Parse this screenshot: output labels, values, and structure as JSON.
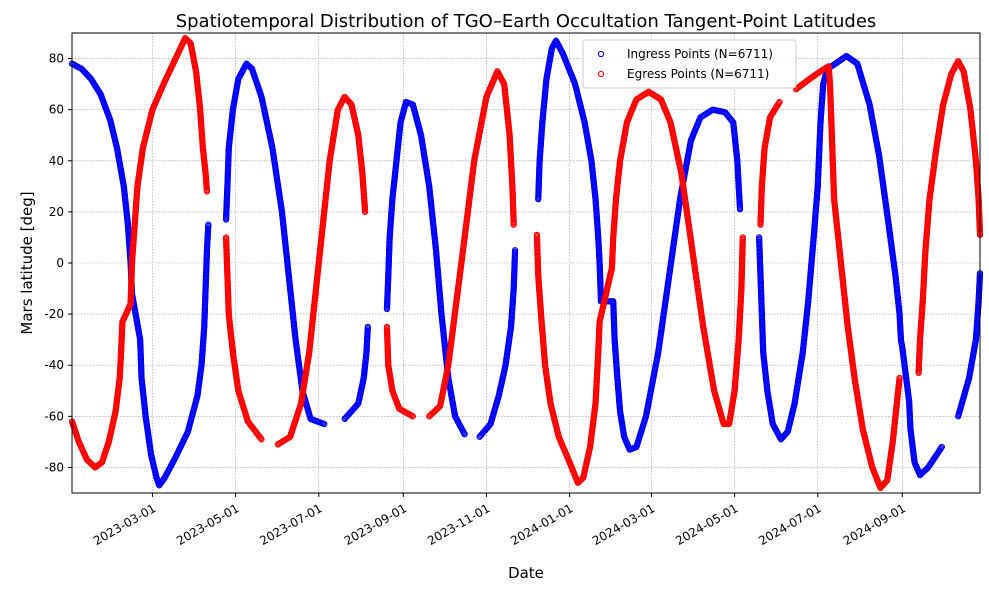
{
  "chart_data": {
    "type": "scatter",
    "title": "Spatiotemporal Distribution of TGO–Earth Occultation Tangent-Point Latitudes",
    "xlabel": "Date",
    "ylabel": "Mars latitude [deg]",
    "xlim": [
      "2023-01-01",
      "2024-10-28"
    ],
    "ylim": [
      -90,
      90
    ],
    "x_ticks": [
      "2023-03-01",
      "2023-05-01",
      "2023-07-01",
      "2023-09-01",
      "2023-11-01",
      "2024-01-01",
      "2024-03-01",
      "2024-05-01",
      "2024-07-01",
      "2024-09-01"
    ],
    "y_ticks": [
      -80,
      -60,
      -40,
      -20,
      0,
      20,
      40,
      60,
      80
    ],
    "grid": true,
    "legend_position": "top-right",
    "marker": "open-circle",
    "series": [
      {
        "name": "Ingress Points (N=6711)",
        "color": "#0000ff",
        "points": [
          [
            "2023-01-01",
            78
          ],
          [
            "2023-01-08",
            76
          ],
          [
            "2023-01-15",
            72
          ],
          [
            "2023-01-22",
            66
          ],
          [
            "2023-01-29",
            56
          ],
          [
            "2023-02-03",
            45
          ],
          [
            "2023-02-08",
            30
          ],
          [
            "2023-02-11",
            15
          ],
          [
            "2023-02-13",
            0
          ],
          [
            "2023-02-14",
            -12
          ],
          [
            "2023-02-20",
            -30
          ],
          [
            "2023-02-21",
            -45
          ],
          [
            "2023-02-24",
            -60
          ],
          [
            "2023-02-28",
            -75
          ],
          [
            "2023-03-04",
            -84
          ],
          [
            "2023-03-06",
            -87
          ],
          [
            "2023-03-10",
            -84
          ],
          [
            "2023-03-18",
            -76
          ],
          [
            "2023-03-27",
            -66
          ],
          [
            "2023-04-03",
            -52
          ],
          [
            "2023-04-06",
            -40
          ],
          [
            "2023-04-08",
            -25
          ],
          [
            "2023-04-09",
            -10
          ],
          [
            "2023-04-10",
            5
          ],
          [
            "2023-04-11",
            15
          ],
          [
            "2023-04-24",
            17
          ],
          [
            "2023-04-25",
            30
          ],
          [
            "2023-04-26",
            45
          ],
          [
            "2023-04-29",
            60
          ],
          [
            "2023-05-03",
            72
          ],
          [
            "2023-05-09",
            78
          ],
          [
            "2023-05-13",
            76
          ],
          [
            "2023-05-20",
            65
          ],
          [
            "2023-05-28",
            45
          ],
          [
            "2023-06-04",
            20
          ],
          [
            "2023-06-09",
            -5
          ],
          [
            "2023-06-14",
            -30
          ],
          [
            "2023-06-19",
            -50
          ],
          [
            "2023-06-25",
            -61
          ],
          [
            "2023-07-05",
            -63
          ],
          [
            "2023-07-20",
            -61
          ],
          [
            "2023-07-30",
            -55
          ],
          [
            "2023-08-03",
            -45
          ],
          [
            "2023-08-05",
            -35
          ],
          [
            "2023-08-06",
            -25
          ],
          [
            "2023-08-20",
            -18
          ],
          [
            "2023-08-21",
            -5
          ],
          [
            "2023-08-22",
            10
          ],
          [
            "2023-08-24",
            25
          ],
          [
            "2023-08-27",
            40
          ],
          [
            "2023-08-30",
            55
          ],
          [
            "2023-09-03",
            63
          ],
          [
            "2023-09-08",
            62
          ],
          [
            "2023-09-14",
            50
          ],
          [
            "2023-09-20",
            30
          ],
          [
            "2023-09-25",
            5
          ],
          [
            "2023-09-29",
            -20
          ],
          [
            "2023-10-04",
            -45
          ],
          [
            "2023-10-09",
            -60
          ],
          [
            "2023-10-16",
            -67
          ],
          [
            "2023-10-27",
            -68
          ],
          [
            "2023-11-04",
            -63
          ],
          [
            "2023-11-10",
            -52
          ],
          [
            "2023-11-15",
            -40
          ],
          [
            "2023-11-19",
            -25
          ],
          [
            "2023-11-21",
            -10
          ],
          [
            "2023-11-22",
            5
          ],
          [
            "2023-12-09",
            25
          ],
          [
            "2023-12-10",
            40
          ],
          [
            "2023-12-12",
            55
          ],
          [
            "2023-12-15",
            72
          ],
          [
            "2023-12-19",
            84
          ],
          [
            "2023-12-22",
            87
          ],
          [
            "2023-12-27",
            82
          ],
          [
            "2024-01-05",
            70
          ],
          [
            "2024-01-12",
            55
          ],
          [
            "2024-01-17",
            40
          ],
          [
            "2024-01-20",
            25
          ],
          [
            "2024-01-22",
            10
          ],
          [
            "2024-01-23",
            0
          ],
          [
            "2024-01-24",
            -15
          ],
          [
            "2024-02-02",
            -15
          ],
          [
            "2024-02-03",
            -30
          ],
          [
            "2024-02-05",
            -45
          ],
          [
            "2024-02-07",
            -58
          ],
          [
            "2024-02-10",
            -68
          ],
          [
            "2024-02-14",
            -73
          ],
          [
            "2024-02-19",
            -72
          ],
          [
            "2024-02-26",
            -60
          ],
          [
            "2024-03-06",
            -35
          ],
          [
            "2024-03-14",
            -5
          ],
          [
            "2024-03-22",
            25
          ],
          [
            "2024-03-30",
            48
          ],
          [
            "2024-04-06",
            57
          ],
          [
            "2024-04-15",
            60
          ],
          [
            "2024-04-24",
            59
          ],
          [
            "2024-04-30",
            55
          ],
          [
            "2024-05-03",
            40
          ],
          [
            "2024-05-04",
            30
          ],
          [
            "2024-05-05",
            21
          ],
          [
            "2024-05-19",
            10
          ],
          [
            "2024-05-20",
            -5
          ],
          [
            "2024-05-21",
            -20
          ],
          [
            "2024-05-22",
            -35
          ],
          [
            "2024-05-25",
            -50
          ],
          [
            "2024-05-29",
            -63
          ],
          [
            "2024-06-04",
            -69
          ],
          [
            "2024-06-09",
            -66
          ],
          [
            "2024-06-14",
            -55
          ],
          [
            "2024-06-20",
            -35
          ],
          [
            "2024-06-24",
            -15
          ],
          [
            "2024-06-28",
            10
          ],
          [
            "2024-07-01",
            30
          ],
          [
            "2024-07-03",
            55
          ],
          [
            "2024-07-05",
            70
          ],
          [
            "2024-07-08",
            76
          ],
          [
            "2024-07-14",
            78
          ],
          [
            "2024-07-22",
            81
          ],
          [
            "2024-07-30",
            78
          ],
          [
            "2024-08-08",
            62
          ],
          [
            "2024-08-15",
            42
          ],
          [
            "2024-08-22",
            15
          ],
          [
            "2024-08-27",
            -5
          ],
          [
            "2024-08-30",
            -20
          ],
          [
            "2024-08-31",
            -30
          ],
          [
            "2024-09-01",
            -33
          ],
          [
            "2024-09-06",
            -54
          ],
          [
            "2024-09-07",
            -65
          ],
          [
            "2024-09-10",
            -78
          ],
          [
            "2024-09-14",
            -83
          ],
          [
            "2024-09-20",
            -80
          ],
          [
            "2024-09-30",
            -72
          ],
          [
            "2024-10-12",
            -60
          ],
          [
            "2024-10-20",
            -45
          ],
          [
            "2024-10-25",
            -30
          ],
          [
            "2024-10-27",
            -15
          ],
          [
            "2024-10-28",
            -4
          ]
        ]
      },
      {
        "name": "Egress Points (N=6711)",
        "color": "#ff0000",
        "points": [
          [
            "2023-01-01",
            -62
          ],
          [
            "2023-01-06",
            -70
          ],
          [
            "2023-01-12",
            -77
          ],
          [
            "2023-01-18",
            -80
          ],
          [
            "2023-01-23",
            -78
          ],
          [
            "2023-01-28",
            -70
          ],
          [
            "2023-02-02",
            -58
          ],
          [
            "2023-02-05",
            -45
          ],
          [
            "2023-02-06",
            -35
          ],
          [
            "2023-02-07",
            -23
          ],
          [
            "2023-02-13",
            -16
          ],
          [
            "2023-02-14",
            0
          ],
          [
            "2023-02-16",
            15
          ],
          [
            "2023-02-18",
            30
          ],
          [
            "2023-02-22",
            45
          ],
          [
            "2023-03-01",
            60
          ],
          [
            "2023-03-10",
            71
          ],
          [
            "2023-03-18",
            80
          ],
          [
            "2023-03-25",
            88
          ],
          [
            "2023-03-29",
            86
          ],
          [
            "2023-04-02",
            75
          ],
          [
            "2023-04-05",
            60
          ],
          [
            "2023-04-07",
            45
          ],
          [
            "2023-04-09",
            35
          ],
          [
            "2023-04-10",
            28
          ],
          [
            "2023-04-24",
            10
          ],
          [
            "2023-04-25",
            -5
          ],
          [
            "2023-04-26",
            -20
          ],
          [
            "2023-04-29",
            -35
          ],
          [
            "2023-05-03",
            -50
          ],
          [
            "2023-05-10",
            -62
          ],
          [
            "2023-05-20",
            -69
          ],
          [
            "2023-06-01",
            -71
          ],
          [
            "2023-06-10",
            -68
          ],
          [
            "2023-06-18",
            -55
          ],
          [
            "2023-06-24",
            -35
          ],
          [
            "2023-06-29",
            -10
          ],
          [
            "2023-07-04",
            15
          ],
          [
            "2023-07-09",
            40
          ],
          [
            "2023-07-15",
            60
          ],
          [
            "2023-07-20",
            65
          ],
          [
            "2023-07-25",
            62
          ],
          [
            "2023-07-30",
            50
          ],
          [
            "2023-08-02",
            35
          ],
          [
            "2023-08-04",
            20
          ],
          [
            "2023-08-20",
            -25
          ],
          [
            "2023-08-21",
            -40
          ],
          [
            "2023-08-24",
            -50
          ],
          [
            "2023-08-29",
            -57
          ],
          [
            "2023-09-08",
            -60
          ],
          [
            "2023-09-20",
            -60
          ],
          [
            "2023-09-28",
            -56
          ],
          [
            "2023-10-04",
            -40
          ],
          [
            "2023-10-10",
            -15
          ],
          [
            "2023-10-16",
            10
          ],
          [
            "2023-10-23",
            40
          ],
          [
            "2023-11-01",
            65
          ],
          [
            "2023-11-09",
            75
          ],
          [
            "2023-11-14",
            70
          ],
          [
            "2023-11-18",
            50
          ],
          [
            "2023-11-20",
            30
          ],
          [
            "2023-11-21",
            15
          ],
          [
            "2023-12-08",
            11
          ],
          [
            "2023-12-09",
            -5
          ],
          [
            "2023-12-11",
            -20
          ],
          [
            "2023-12-14",
            -40
          ],
          [
            "2023-12-18",
            -55
          ],
          [
            "2023-12-24",
            -68
          ],
          [
            "2024-01-01",
            -78
          ],
          [
            "2024-01-07",
            -86
          ],
          [
            "2024-01-11",
            -84
          ],
          [
            "2024-01-16",
            -72
          ],
          [
            "2024-01-20",
            -55
          ],
          [
            "2024-01-22",
            -35
          ],
          [
            "2024-01-23",
            -23
          ],
          [
            "2024-02-01",
            -2
          ],
          [
            "2024-02-02",
            10
          ],
          [
            "2024-02-04",
            25
          ],
          [
            "2024-02-07",
            40
          ],
          [
            "2024-02-12",
            55
          ],
          [
            "2024-02-19",
            64
          ],
          [
            "2024-02-28",
            67
          ],
          [
            "2024-03-08",
            64
          ],
          [
            "2024-03-15",
            55
          ],
          [
            "2024-03-23",
            35
          ],
          [
            "2024-03-31",
            5
          ],
          [
            "2024-04-08",
            -25
          ],
          [
            "2024-04-16",
            -50
          ],
          [
            "2024-04-23",
            -63
          ],
          [
            "2024-04-27",
            -63
          ],
          [
            "2024-05-01",
            -50
          ],
          [
            "2024-05-04",
            -30
          ],
          [
            "2024-05-06",
            -10
          ],
          [
            "2024-05-07",
            10
          ],
          [
            "2024-05-20",
            15
          ],
          [
            "2024-05-21",
            30
          ],
          [
            "2024-05-23",
            45
          ],
          [
            "2024-05-27",
            57
          ],
          [
            "2024-06-03",
            63
          ],
          [
            "2024-06-15",
            68
          ],
          [
            "2024-06-25",
            72
          ],
          [
            "2024-07-03",
            75
          ],
          [
            "2024-07-09",
            77
          ],
          [
            "2024-07-10",
            70
          ],
          [
            "2024-07-11",
            55
          ],
          [
            "2024-07-12",
            40
          ],
          [
            "2024-07-13",
            25
          ],
          [
            "2024-07-18",
            0
          ],
          [
            "2024-07-23",
            -25
          ],
          [
            "2024-07-28",
            -45
          ],
          [
            "2024-08-03",
            -65
          ],
          [
            "2024-08-10",
            -80
          ],
          [
            "2024-08-16",
            -88
          ],
          [
            "2024-08-21",
            -85
          ],
          [
            "2024-08-25",
            -70
          ],
          [
            "2024-08-28",
            -55
          ],
          [
            "2024-08-30",
            -45
          ],
          [
            "2024-09-13",
            -43
          ],
          [
            "2024-09-14",
            -30
          ],
          [
            "2024-09-16",
            -15
          ],
          [
            "2024-09-18",
            5
          ],
          [
            "2024-09-21",
            25
          ],
          [
            "2024-09-26",
            45
          ],
          [
            "2024-10-01",
            62
          ],
          [
            "2024-10-07",
            74
          ],
          [
            "2024-10-12",
            79
          ],
          [
            "2024-10-16",
            75
          ],
          [
            "2024-10-21",
            60
          ],
          [
            "2024-10-25",
            40
          ],
          [
            "2024-10-27",
            25
          ],
          [
            "2024-10-28",
            11
          ]
        ]
      }
    ]
  }
}
